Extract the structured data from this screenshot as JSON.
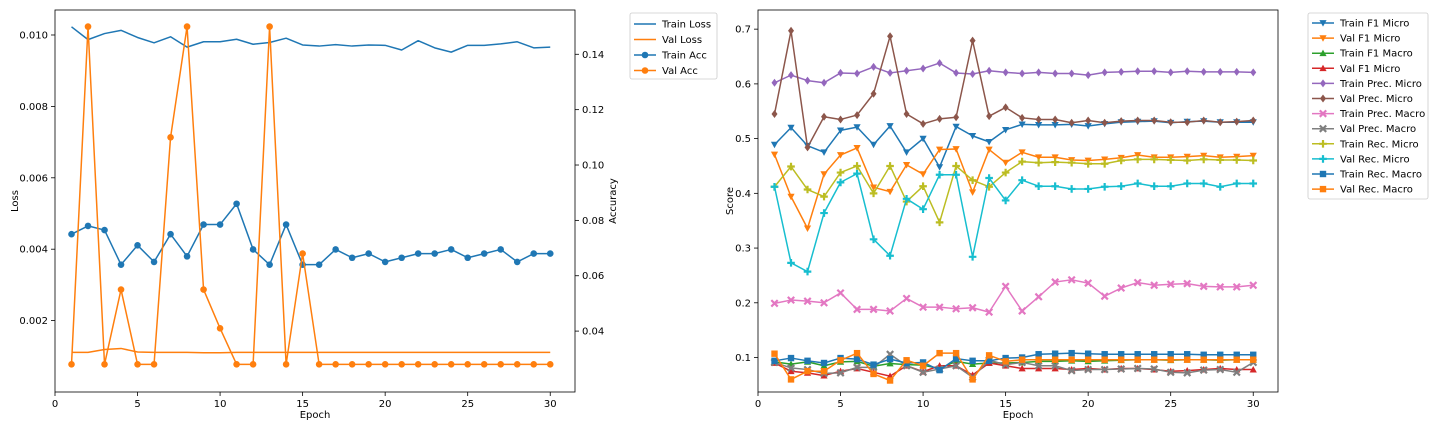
{
  "chart_data": [
    {
      "type": "line",
      "xlabel": "Epoch",
      "ylabel": "Loss",
      "y2label": "Accuracy",
      "xlim": [
        0,
        31.5
      ],
      "ylim": [
        0,
        0.0107
      ],
      "y2lim": [
        0.018,
        0.156
      ],
      "xticks": [
        0,
        5,
        10,
        15,
        20,
        25,
        30
      ],
      "yticks": [
        0.002,
        0.004,
        0.006,
        0.008,
        0.01
      ],
      "ytick_labels": [
        "0.002",
        "0.004",
        "0.006",
        "0.008",
        "0.010"
      ],
      "y2ticks": [
        0.04,
        0.06,
        0.08,
        0.1,
        0.12,
        0.14
      ],
      "y2tick_labels": [
        "0.04",
        "0.06",
        "0.08",
        "0.10",
        "0.12",
        "0.14"
      ],
      "legend_position": "outside-top-right",
      "x": [
        1,
        2,
        3,
        4,
        5,
        6,
        7,
        8,
        9,
        10,
        11,
        12,
        13,
        14,
        15,
        16,
        17,
        18,
        19,
        20,
        21,
        22,
        23,
        24,
        25,
        26,
        27,
        28,
        29,
        30
      ],
      "series": [
        {
          "name": "Train Loss",
          "axis": "left",
          "color": "#1f77b4",
          "marker": "none",
          "values": [
            0.01023,
            0.00987,
            0.01004,
            0.01013,
            0.00993,
            0.00978,
            0.00995,
            0.00966,
            0.00981,
            0.00981,
            0.00988,
            0.00974,
            0.00979,
            0.00991,
            0.00972,
            0.00969,
            0.00973,
            0.00969,
            0.00972,
            0.00971,
            0.00958,
            0.00984,
            0.00964,
            0.00952,
            0.00971,
            0.00971,
            0.00975,
            0.00981,
            0.00964,
            0.00966
          ]
        },
        {
          "name": "Val Loss",
          "axis": "left",
          "color": "#ff7f0e",
          "marker": "none",
          "values": [
            0.00111,
            0.00111,
            0.00119,
            0.00122,
            0.00112,
            0.00111,
            0.00111,
            0.00111,
            0.0011,
            0.0011,
            0.00111,
            0.00111,
            0.00111,
            0.00111,
            0.00111,
            0.00111,
            0.00111,
            0.00111,
            0.00111,
            0.00111,
            0.00111,
            0.00111,
            0.00111,
            0.00111,
            0.00111,
            0.00111,
            0.00111,
            0.00111,
            0.00111,
            0.00111
          ]
        },
        {
          "name": "Train Acc",
          "axis": "right",
          "color": "#1f77b4",
          "marker": "circle",
          "values": [
            0.075,
            0.078,
            0.0765,
            0.064,
            0.071,
            0.065,
            0.075,
            0.067,
            0.0785,
            0.0785,
            0.086,
            0.0695,
            0.064,
            0.0785,
            0.064,
            0.064,
            0.0695,
            0.0665,
            0.068,
            0.065,
            0.0665,
            0.068,
            0.068,
            0.0695,
            0.0665,
            0.068,
            0.0695,
            0.065,
            0.068,
            0.068
          ]
        },
        {
          "name": "Val Acc",
          "axis": "right",
          "color": "#ff7f0e",
          "marker": "circle",
          "values": [
            0.028,
            0.15,
            0.028,
            0.055,
            0.028,
            0.028,
            0.11,
            0.15,
            0.055,
            0.041,
            0.028,
            0.028,
            0.15,
            0.028,
            0.068,
            0.028,
            0.028,
            0.028,
            0.028,
            0.028,
            0.028,
            0.028,
            0.028,
            0.028,
            0.028,
            0.028,
            0.028,
            0.028,
            0.028,
            0.028
          ]
        }
      ]
    },
    {
      "type": "line",
      "xlabel": "Epoch",
      "ylabel": "Score",
      "xlim": [
        0,
        31.5
      ],
      "ylim": [
        0.037,
        0.735
      ],
      "xticks": [
        0,
        5,
        10,
        15,
        20,
        25,
        30
      ],
      "yticks": [
        0.1,
        0.2,
        0.3,
        0.4,
        0.5,
        0.6,
        0.7
      ],
      "ytick_labels": [
        "0.1",
        "0.2",
        "0.3",
        "0.4",
        "0.5",
        "0.6",
        "0.7"
      ],
      "legend_position": "outside-top-right",
      "x": [
        1,
        2,
        3,
        4,
        5,
        6,
        7,
        8,
        9,
        10,
        11,
        12,
        13,
        14,
        15,
        16,
        17,
        18,
        19,
        20,
        21,
        22,
        23,
        24,
        25,
        26,
        27,
        28,
        29,
        30
      ],
      "series": [
        {
          "name": "Train F1 Micro",
          "color": "#1f77b4",
          "marker": "tri_down",
          "values": [
            0.489,
            0.52,
            0.487,
            0.475,
            0.515,
            0.521,
            0.489,
            0.523,
            0.475,
            0.5,
            0.448,
            0.522,
            0.505,
            0.494,
            0.516,
            0.526,
            0.525,
            0.525,
            0.526,
            0.523,
            0.527,
            0.53,
            0.531,
            0.532,
            0.529,
            0.531,
            0.532,
            0.53,
            0.53,
            0.53
          ]
        },
        {
          "name": "Val F1 Micro",
          "color": "#ff7f0e",
          "marker": "tri_down",
          "values": [
            0.471,
            0.394,
            0.336,
            0.435,
            0.47,
            0.483,
            0.411,
            0.403,
            0.452,
            0.435,
            0.48,
            0.481,
            0.402,
            0.48,
            0.456,
            0.475,
            0.466,
            0.466,
            0.461,
            0.46,
            0.462,
            0.465,
            0.47,
            0.466,
            0.466,
            0.467,
            0.469,
            0.466,
            0.467,
            0.469
          ]
        },
        {
          "name": "Train F1 Macro",
          "color": "#2ca02c",
          "marker": "tri_up",
          "values": [
            0.092,
            0.088,
            0.092,
            0.085,
            0.092,
            0.093,
            0.084,
            0.089,
            0.087,
            0.086,
            0.08,
            0.093,
            0.088,
            0.09,
            0.09,
            0.091,
            0.093,
            0.093,
            0.094,
            0.093,
            0.094,
            0.095,
            0.096,
            0.096,
            0.095,
            0.096,
            0.096,
            0.095,
            0.096,
            0.096
          ]
        },
        {
          "name": "Val F1 Micro",
          "color": "#d62728",
          "marker": "tri_up",
          "values": [
            0.09,
            0.075,
            0.072,
            0.067,
            0.075,
            0.08,
            0.073,
            0.066,
            0.085,
            0.074,
            0.085,
            0.085,
            0.068,
            0.09,
            0.085,
            0.08,
            0.08,
            0.08,
            0.078,
            0.08,
            0.078,
            0.08,
            0.08,
            0.078,
            0.075,
            0.076,
            0.078,
            0.08,
            0.078,
            0.078
          ]
        },
        {
          "name": "Train Prec. Micro",
          "color": "#9467bd",
          "marker": "diamond",
          "values": [
            0.602,
            0.616,
            0.606,
            0.602,
            0.62,
            0.619,
            0.631,
            0.62,
            0.624,
            0.628,
            0.638,
            0.62,
            0.618,
            0.624,
            0.621,
            0.619,
            0.621,
            0.619,
            0.619,
            0.616,
            0.621,
            0.622,
            0.623,
            0.623,
            0.621,
            0.623,
            0.622,
            0.622,
            0.622,
            0.621
          ]
        },
        {
          "name": "Val Prec. Micro",
          "color": "#8c564b",
          "marker": "diamond",
          "values": [
            0.545,
            0.697,
            0.484,
            0.54,
            0.535,
            0.543,
            0.582,
            0.687,
            0.545,
            0.527,
            0.536,
            0.539,
            0.679,
            0.541,
            0.557,
            0.538,
            0.535,
            0.535,
            0.529,
            0.533,
            0.529,
            0.532,
            0.533,
            0.533,
            0.53,
            0.53,
            0.533,
            0.53,
            0.531,
            0.533
          ]
        },
        {
          "name": "Train Prec. Macro",
          "color": "#e377c2",
          "marker": "x",
          "values": [
            0.199,
            0.205,
            0.203,
            0.2,
            0.218,
            0.188,
            0.188,
            0.185,
            0.208,
            0.192,
            0.192,
            0.189,
            0.191,
            0.183,
            0.23,
            0.185,
            0.211,
            0.238,
            0.242,
            0.236,
            0.212,
            0.227,
            0.237,
            0.232,
            0.234,
            0.235,
            0.23,
            0.229,
            0.229,
            0.232
          ]
        },
        {
          "name": "Val Prec. Macro",
          "color": "#7f7f7f",
          "marker": "x",
          "values": [
            0.091,
            0.081,
            0.078,
            0.071,
            0.072,
            0.082,
            0.082,
            0.106,
            0.085,
            0.073,
            0.079,
            0.085,
            0.064,
            0.095,
            0.087,
            0.091,
            0.085,
            0.085,
            0.076,
            0.078,
            0.078,
            0.079,
            0.08,
            0.079,
            0.073,
            0.072,
            0.077,
            0.078,
            0.073,
            0.091
          ]
        },
        {
          "name": "Train Rec. Micro",
          "color": "#bcbd22",
          "marker": "plus",
          "values": [
            0.412,
            0.449,
            0.407,
            0.394,
            0.438,
            0.45,
            0.4,
            0.45,
            0.385,
            0.413,
            0.347,
            0.45,
            0.424,
            0.412,
            0.438,
            0.458,
            0.456,
            0.457,
            0.456,
            0.454,
            0.454,
            0.46,
            0.462,
            0.462,
            0.461,
            0.46,
            0.462,
            0.461,
            0.461,
            0.46
          ]
        },
        {
          "name": "Val Rec. Micro",
          "color": "#17becf",
          "marker": "plus",
          "values": [
            0.412,
            0.273,
            0.257,
            0.364,
            0.42,
            0.436,
            0.316,
            0.286,
            0.39,
            0.371,
            0.434,
            0.434,
            0.284,
            0.428,
            0.387,
            0.424,
            0.413,
            0.413,
            0.408,
            0.408,
            0.412,
            0.413,
            0.418,
            0.413,
            0.413,
            0.418,
            0.418,
            0.412,
            0.418,
            0.418
          ]
        },
        {
          "name": "Train Rec. Macro",
          "color": "#1f77b4",
          "marker": "square",
          "values": [
            0.094,
            0.099,
            0.094,
            0.09,
            0.099,
            0.097,
            0.087,
            0.097,
            0.09,
            0.091,
            0.077,
            0.098,
            0.094,
            0.094,
            0.099,
            0.1,
            0.106,
            0.107,
            0.108,
            0.107,
            0.106,
            0.106,
            0.106,
            0.106,
            0.106,
            0.106,
            0.105,
            0.105,
            0.105,
            0.105
          ]
        },
        {
          "name": "Val Rec. Macro",
          "color": "#ff7f0e",
          "marker": "square",
          "values": [
            0.107,
            0.06,
            0.075,
            0.075,
            0.095,
            0.108,
            0.07,
            0.058,
            0.095,
            0.085,
            0.108,
            0.108,
            0.06,
            0.104,
            0.093,
            0.096,
            0.096,
            0.096,
            0.096,
            0.096,
            0.096,
            0.096,
            0.096,
            0.096,
            0.096,
            0.096,
            0.096,
            0.096,
            0.096,
            0.096
          ]
        }
      ]
    }
  ]
}
